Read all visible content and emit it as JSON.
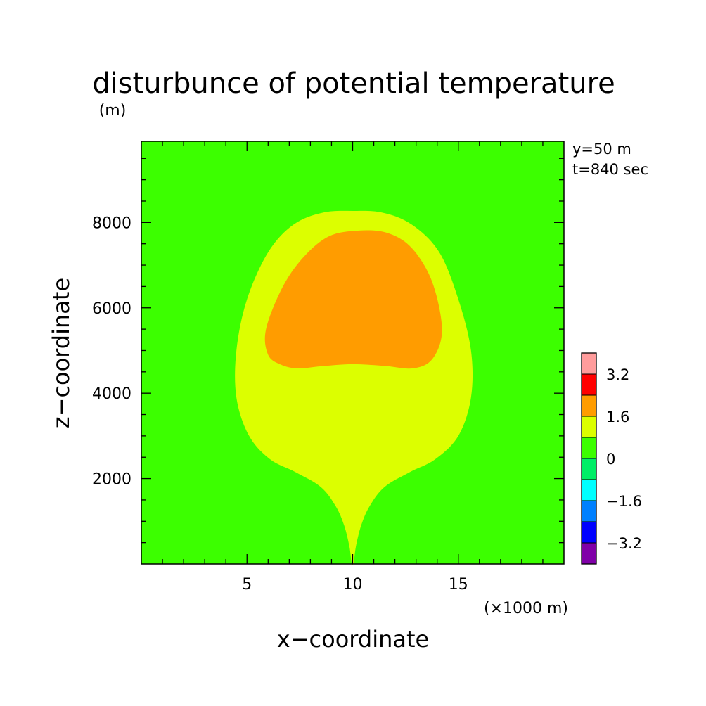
{
  "chart_data": {
    "type": "heatmap",
    "title": "disturbunce of potential temperature",
    "xlabel": "x−coordinate",
    "ylabel": "z−coordinate",
    "x_unit": "(×1000 m)",
    "y_unit": "(m)",
    "annotations": [
      "y=50 m",
      "t=840 sec"
    ],
    "xlim": [
      0,
      20
    ],
    "ylim": [
      0,
      9900
    ],
    "x_ticks": [
      5,
      10,
      15
    ],
    "y_ticks": [
      2000,
      4000,
      6000,
      8000
    ],
    "x_tick_labels": [
      "5",
      "10",
      "15"
    ],
    "y_tick_labels": [
      "2000",
      "4000",
      "6000",
      "8000"
    ],
    "background_color": "#3cff00",
    "regions": [
      {
        "level": "0 to 0.8",
        "color": "#3cff00",
        "role": "background"
      },
      {
        "level": "0.8 to 1.6",
        "color": "#dcff00",
        "outline": [
          [
            9.95,
            30
          ],
          [
            9.85,
            400
          ],
          [
            9.6,
            900
          ],
          [
            9.2,
            1350
          ],
          [
            8.5,
            1800
          ],
          [
            7.3,
            2150
          ],
          [
            6.1,
            2450
          ],
          [
            5.1,
            3000
          ],
          [
            4.5,
            3900
          ],
          [
            4.5,
            5000
          ],
          [
            5.0,
            6200
          ],
          [
            6.0,
            7300
          ],
          [
            7.2,
            7950
          ],
          [
            8.6,
            8230
          ],
          [
            10.0,
            8270
          ],
          [
            11.4,
            8230
          ],
          [
            12.8,
            7950
          ],
          [
            14.1,
            7300
          ],
          [
            15.0,
            6200
          ],
          [
            15.6,
            5000
          ],
          [
            15.6,
            3900
          ],
          [
            15.0,
            3000
          ],
          [
            13.9,
            2450
          ],
          [
            12.7,
            2150
          ],
          [
            11.5,
            1800
          ],
          [
            10.8,
            1350
          ],
          [
            10.4,
            900
          ],
          [
            10.15,
            400
          ],
          [
            10.05,
            30
          ]
        ]
      },
      {
        "level": "1.6 to 2.4",
        "color": "#ff9c00",
        "outline": [
          [
            6.6,
            4670
          ],
          [
            7.4,
            4580
          ],
          [
            8.5,
            4630
          ],
          [
            10.0,
            4680
          ],
          [
            11.5,
            4640
          ],
          [
            12.8,
            4580
          ],
          [
            13.7,
            4760
          ],
          [
            14.2,
            5300
          ],
          [
            14.1,
            6000
          ],
          [
            13.6,
            6800
          ],
          [
            12.7,
            7450
          ],
          [
            11.6,
            7760
          ],
          [
            10.3,
            7810
          ],
          [
            8.9,
            7680
          ],
          [
            7.7,
            7200
          ],
          [
            6.7,
            6500
          ],
          [
            5.9,
            5500
          ],
          [
            6.0,
            4900
          ]
        ]
      }
    ],
    "colorbar": {
      "labels": [
        "3.2",
        "1.6",
        "0",
        "−1.6",
        "−3.2"
      ],
      "colors": [
        "#ff9c9c",
        "#ff0000",
        "#ff9c00",
        "#dcff00",
        "#3cff00",
        "#00ee66",
        "#00ffff",
        "#0080ff",
        "#0000ff",
        "#8000a8"
      ],
      "range": [
        -4,
        4
      ]
    }
  }
}
